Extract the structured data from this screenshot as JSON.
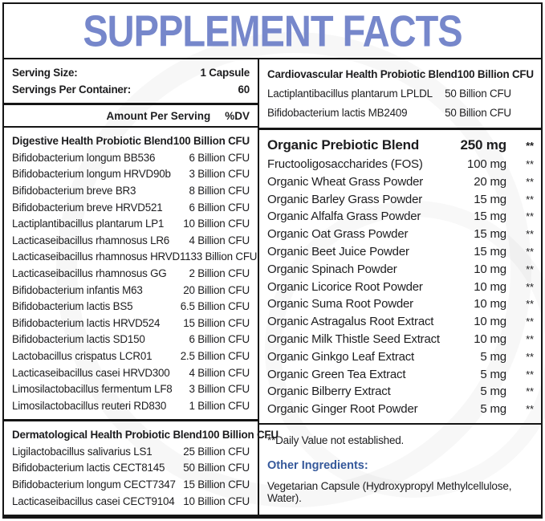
{
  "title": "SUPPLEMENT FACTS",
  "colors": {
    "title": "#7687cb",
    "heading_blue": "#36599b",
    "text": "#1d1d1f"
  },
  "serving_info": {
    "serving_size_label": "Serving Size:",
    "serving_size_value": "1 Capsule",
    "servings_per_container_label": "Servings Per Container:",
    "servings_per_container_value": "60"
  },
  "column_header": {
    "amount": "Amount Per Serving",
    "dv": "%DV"
  },
  "digestive": {
    "name": "Digestive Health Probiotic Blend",
    "amount": "100 Billion CFU",
    "rows": [
      [
        "Bifidobacterium longum BB536",
        "6 Billion CFU"
      ],
      [
        "Bifidobacterium longum HRVD90b",
        "3 Billion CFU"
      ],
      [
        "Bifidobacterium breve BR3",
        "8 Billion CFU"
      ],
      [
        "Bifidobacterium breve HRVD521",
        "6 Billion CFU"
      ],
      [
        "Lactiplantibacillus plantarum LP1",
        "10 Billion CFU"
      ],
      [
        "Lacticaseibacillus rhamnosus LR6",
        "4 Billion CFU"
      ],
      [
        "Lacticaseibacillus rhamnosus HRVD113",
        "3 Billion CFU"
      ],
      [
        "Lacticaseibacillus rhamnosus GG",
        "2 Billion CFU"
      ],
      [
        "Bifidobacterium infantis M63",
        "20 Billion CFU"
      ],
      [
        "Bifidobacterium lactis BS5",
        "6.5 Billion CFU"
      ],
      [
        "Bifidobacterium lactis HRVD524",
        "15 Billion CFU"
      ],
      [
        "Bifidobacterium lactis SD150",
        "6 Billion CFU"
      ],
      [
        "Lactobacillus crispatus LCR01",
        "2.5 Billion CFU"
      ],
      [
        "Lacticaseibacillus casei HRVD300",
        "4 Billion CFU"
      ],
      [
        "Limosilactobacillus fermentum LF8",
        "3 Billion CFU"
      ],
      [
        "Limosilactobacillus reuteri RD830",
        "1 Billion CFU"
      ]
    ]
  },
  "dermatological": {
    "name": "Dermatological Health Probiotic Blend",
    "amount": "100 Billion CFU",
    "rows": [
      [
        "Ligilactobacillus salivarius LS1",
        "25 Billion CFU"
      ],
      [
        "Bifidobacterium lactis CECT8145",
        "50 Billion CFU"
      ],
      [
        "Bifidobacterium longum CECT7347",
        "15 Billion CFU"
      ],
      [
        "Lacticaseibacillus casei CECT9104",
        "10 Billion CFU"
      ]
    ]
  },
  "cardiovascular": {
    "name": "Cardiovascular Health Probiotic Blend",
    "amount": "100 Billion CFU",
    "rows": [
      [
        "Lactiplantibacillus plantarum LPLDL",
        "50 Billion CFU"
      ],
      [
        "Bifidobacterium lactis MB2409",
        "50 Billion CFU"
      ]
    ]
  },
  "prebiotic": {
    "name": "Organic Prebiotic Blend",
    "amount": "250 mg",
    "dv": "**",
    "rows": [
      [
        "Fructooligosaccharides (FOS)",
        "100 mg",
        "**"
      ],
      [
        "Organic Wheat Grass Powder",
        "20 mg",
        "**"
      ],
      [
        "Organic Barley Grass Powder",
        "15 mg",
        "**"
      ],
      [
        "Organic Alfalfa Grass Powder",
        "15 mg",
        "**"
      ],
      [
        "Organic Oat Grass Powder",
        "15 mg",
        "**"
      ],
      [
        "Organic Beet Juice Powder",
        "15 mg",
        "**"
      ],
      [
        "Organic Spinach Powder",
        "10 mg",
        "**"
      ],
      [
        "Organic Licorice Root Powder",
        "10 mg",
        "**"
      ],
      [
        "Organic Suma Root Powder",
        "10 mg",
        "**"
      ],
      [
        "Organic Astragalus Root Extract",
        "10 mg",
        "**"
      ],
      [
        "Organic Milk Thistle Seed Extract",
        "10 mg",
        "**"
      ],
      [
        "Organic Ginkgo Leaf Extract",
        "5 mg",
        "**"
      ],
      [
        "Organic Green Tea Extract",
        "5 mg",
        "**"
      ],
      [
        "Organic Bilberry Extract",
        "5 mg",
        "**"
      ],
      [
        "Organic Ginger Root Powder",
        "5 mg",
        "**"
      ]
    ]
  },
  "footnote": "**Daily Value not established.",
  "other_ingredients": {
    "label": "Other Ingredients:",
    "value": "Vegetarian Capsule (Hydroxypropyl Methylcellulose, Water)."
  }
}
